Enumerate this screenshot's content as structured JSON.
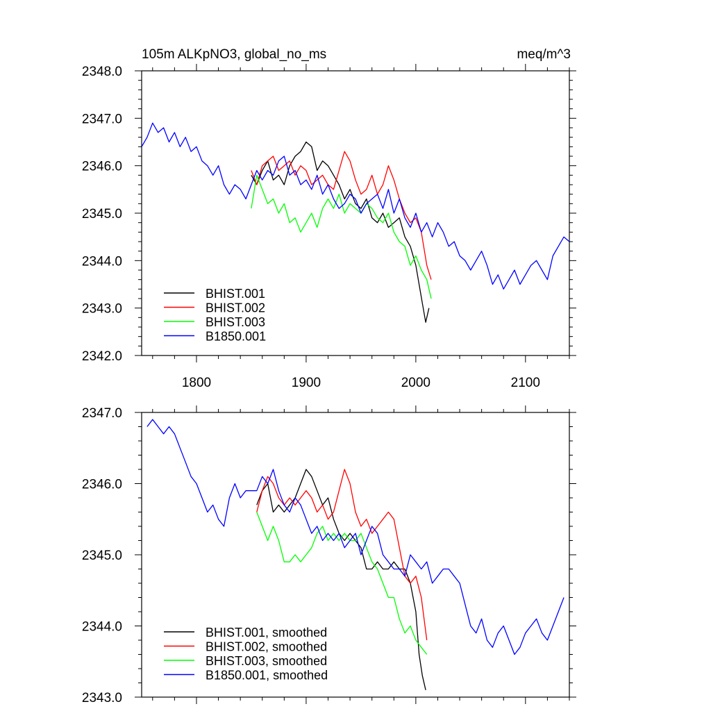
{
  "chart_data": [
    {
      "type": "line",
      "title": "105m ALKpNO3, global_no_ms",
      "units": "meq/m^3",
      "xlim": [
        1750,
        2140
      ],
      "ylim": [
        2342.0,
        2348.0
      ],
      "xticks": [
        1800,
        1900,
        2000,
        2100
      ],
      "xtick_labels": [
        "1800",
        "1900",
        "2000",
        "2100"
      ],
      "yticks": [
        2342.0,
        2343.0,
        2344.0,
        2345.0,
        2346.0,
        2347.0,
        2348.0
      ],
      "ytick_labels": [
        "2342.0",
        "2343.0",
        "2344.0",
        "2345.0",
        "2346.0",
        "2347.0",
        "2348.0"
      ],
      "legend_position": "bottom-left",
      "series": [
        {
          "name": "BHIST.001",
          "color": "#000000",
          "x": [
            1850,
            1855,
            1860,
            1865,
            1870,
            1875,
            1880,
            1885,
            1890,
            1895,
            1900,
            1905,
            1910,
            1915,
            1920,
            1925,
            1930,
            1935,
            1940,
            1945,
            1950,
            1955,
            1960,
            1965,
            1970,
            1975,
            1980,
            1985,
            1990,
            1995,
            2000,
            2003,
            2006,
            2009,
            2012
          ],
          "y": [
            2345.8,
            2345.6,
            2345.9,
            2346.1,
            2345.7,
            2345.8,
            2345.6,
            2346.0,
            2346.2,
            2346.3,
            2346.5,
            2346.4,
            2345.9,
            2346.1,
            2346.0,
            2345.8,
            2345.6,
            2345.3,
            2345.5,
            2345.2,
            2345.1,
            2345.3,
            2344.9,
            2344.8,
            2345.0,
            2344.7,
            2344.8,
            2344.9,
            2344.5,
            2344.3,
            2343.9,
            2343.5,
            2343.1,
            2342.7,
            2343.0
          ]
        },
        {
          "name": "BHIST.002",
          "color": "#ff0000",
          "x": [
            1850,
            1855,
            1860,
            1865,
            1870,
            1875,
            1880,
            1885,
            1890,
            1895,
            1900,
            1905,
            1910,
            1915,
            1920,
            1925,
            1930,
            1935,
            1940,
            1945,
            1950,
            1955,
            1960,
            1965,
            1970,
            1975,
            1980,
            1985,
            1990,
            1995,
            2000,
            2005,
            2010,
            2014
          ],
          "y": [
            2345.9,
            2345.6,
            2346.0,
            2346.1,
            2346.2,
            2345.9,
            2346.0,
            2346.1,
            2345.8,
            2346.0,
            2345.9,
            2345.6,
            2345.7,
            2345.8,
            2345.6,
            2345.5,
            2345.9,
            2346.3,
            2346.1,
            2345.7,
            2345.4,
            2345.5,
            2345.8,
            2345.4,
            2345.6,
            2346.0,
            2345.7,
            2345.3,
            2345.0,
            2344.8,
            2344.9,
            2344.6,
            2343.9,
            2343.6
          ]
        },
        {
          "name": "BHIST.003",
          "color": "#00ff00",
          "x": [
            1850,
            1855,
            1860,
            1865,
            1870,
            1875,
            1880,
            1885,
            1890,
            1895,
            1900,
            1905,
            1910,
            1915,
            1920,
            1925,
            1930,
            1935,
            1940,
            1945,
            1950,
            1955,
            1960,
            1965,
            1970,
            1975,
            1980,
            1985,
            1990,
            1995,
            2000,
            2005,
            2010,
            2014
          ],
          "y": [
            2345.1,
            2345.8,
            2345.5,
            2345.2,
            2345.3,
            2345.0,
            2345.2,
            2344.8,
            2344.9,
            2344.6,
            2344.8,
            2345.0,
            2344.7,
            2345.1,
            2345.3,
            2345.1,
            2345.4,
            2345.0,
            2345.2,
            2345.1,
            2345.0,
            2345.2,
            2345.1,
            2344.9,
            2344.8,
            2345.0,
            2344.6,
            2344.4,
            2344.3,
            2343.9,
            2344.1,
            2343.8,
            2343.6,
            2343.2
          ]
        },
        {
          "name": "B1850.001",
          "color": "#0000ff",
          "x": [
            1750,
            1755,
            1760,
            1765,
            1770,
            1775,
            1780,
            1785,
            1790,
            1795,
            1800,
            1805,
            1810,
            1815,
            1820,
            1825,
            1830,
            1835,
            1840,
            1845,
            1850,
            1855,
            1860,
            1865,
            1870,
            1875,
            1880,
            1885,
            1890,
            1895,
            1900,
            1905,
            1910,
            1915,
            1920,
            1925,
            1930,
            1935,
            1940,
            1945,
            1950,
            1955,
            1960,
            1965,
            1970,
            1975,
            1980,
            1985,
            1990,
            1995,
            2000,
            2005,
            2010,
            2015,
            2020,
            2025,
            2030,
            2035,
            2040,
            2045,
            2050,
            2055,
            2060,
            2065,
            2070,
            2075,
            2080,
            2085,
            2090,
            2095,
            2100,
            2105,
            2110,
            2115,
            2120,
            2125,
            2130,
            2135,
            2140
          ],
          "y": [
            2346.4,
            2346.6,
            2346.9,
            2346.7,
            2346.8,
            2346.5,
            2346.7,
            2346.4,
            2346.6,
            2346.3,
            2346.4,
            2346.1,
            2346.0,
            2345.8,
            2346.0,
            2345.6,
            2345.4,
            2345.6,
            2345.5,
            2345.3,
            2345.6,
            2345.9,
            2345.7,
            2345.9,
            2345.8,
            2346.1,
            2346.2,
            2345.8,
            2345.9,
            2345.6,
            2345.7,
            2345.5,
            2345.8,
            2345.4,
            2345.6,
            2345.3,
            2345.1,
            2345.2,
            2345.4,
            2345.3,
            2345.0,
            2345.2,
            2345.3,
            2345.4,
            2345.1,
            2345.5,
            2345.0,
            2345.3,
            2344.9,
            2344.7,
            2345.0,
            2344.6,
            2344.8,
            2344.5,
            2344.8,
            2344.6,
            2344.3,
            2344.4,
            2344.1,
            2344.0,
            2343.8,
            2344.0,
            2344.2,
            2343.9,
            2343.5,
            2343.7,
            2343.4,
            2343.6,
            2343.8,
            2343.5,
            2343.7,
            2343.9,
            2344.0,
            2343.8,
            2343.6,
            2344.1,
            2344.3,
            2344.5,
            2344.4
          ]
        }
      ]
    },
    {
      "type": "line",
      "title": "",
      "xlim": [
        1750,
        2140
      ],
      "ylim": [
        2343.0,
        2347.0
      ],
      "xticks": [
        1800,
        1900,
        2000,
        2100
      ],
      "yticks": [
        2343.0,
        2344.0,
        2345.0,
        2346.0,
        2347.0
      ],
      "ytick_labels": [
        "2343.0",
        "2344.0",
        "2345.0",
        "2346.0",
        "2347.0"
      ],
      "legend_position": "bottom-left",
      "series": [
        {
          "name": "BHIST.001, smoothed",
          "color": "#000000",
          "x": [
            1855,
            1860,
            1865,
            1870,
            1875,
            1880,
            1885,
            1890,
            1895,
            1900,
            1905,
            1910,
            1915,
            1920,
            1925,
            1930,
            1935,
            1940,
            1945,
            1950,
            1955,
            1960,
            1965,
            1970,
            1975,
            1980,
            1985,
            1990,
            1995,
            2000,
            2003,
            2006,
            2009
          ],
          "y": [
            2345.7,
            2345.9,
            2346.0,
            2345.6,
            2345.7,
            2345.6,
            2345.7,
            2345.8,
            2346.0,
            2346.2,
            2346.1,
            2345.9,
            2345.7,
            2345.8,
            2345.5,
            2345.3,
            2345.2,
            2345.3,
            2345.2,
            2345.1,
            2344.8,
            2344.8,
            2344.9,
            2344.8,
            2344.8,
            2344.9,
            2344.8,
            2344.8,
            2344.6,
            2344.2,
            2343.6,
            2343.3,
            2343.1
          ]
        },
        {
          "name": "BHIST.002, smoothed",
          "color": "#ff0000",
          "x": [
            1855,
            1860,
            1865,
            1870,
            1875,
            1880,
            1885,
            1890,
            1895,
            1900,
            1905,
            1910,
            1915,
            1920,
            1925,
            1930,
            1935,
            1940,
            1945,
            1950,
            1955,
            1960,
            1965,
            1970,
            1975,
            1980,
            1985,
            1990,
            1995,
            2000,
            2005,
            2010
          ],
          "y": [
            2345.6,
            2345.9,
            2346.1,
            2346.0,
            2345.8,
            2345.7,
            2345.8,
            2345.7,
            2345.8,
            2345.9,
            2345.8,
            2345.6,
            2345.7,
            2345.5,
            2345.6,
            2345.9,
            2346.2,
            2346.0,
            2345.6,
            2345.4,
            2345.5,
            2345.3,
            2345.4,
            2345.5,
            2345.6,
            2345.5,
            2345.1,
            2344.7,
            2344.6,
            2344.7,
            2344.4,
            2343.8
          ]
        },
        {
          "name": "BHIST.003, smoothed",
          "color": "#00ff00",
          "x": [
            1855,
            1860,
            1865,
            1870,
            1875,
            1880,
            1885,
            1890,
            1895,
            1900,
            1905,
            1910,
            1915,
            1920,
            1925,
            1930,
            1935,
            1940,
            1945,
            1950,
            1955,
            1960,
            1965,
            1970,
            1975,
            1980,
            1985,
            1990,
            1995,
            2000,
            2005,
            2010
          ],
          "y": [
            2345.6,
            2345.4,
            2345.2,
            2345.4,
            2345.2,
            2344.9,
            2344.9,
            2345.0,
            2344.9,
            2345.0,
            2345.1,
            2345.3,
            2345.4,
            2345.2,
            2345.3,
            2345.2,
            2345.3,
            2345.2,
            2345.2,
            2345.3,
            2345.1,
            2344.9,
            2344.8,
            2344.6,
            2344.4,
            2344.4,
            2344.1,
            2343.9,
            2344.0,
            2343.8,
            2343.7,
            2343.6
          ]
        },
        {
          "name": "B1850.001, smoothed",
          "color": "#0000ff",
          "x": [
            1755,
            1760,
            1765,
            1770,
            1775,
            1780,
            1785,
            1790,
            1795,
            1800,
            1805,
            1810,
            1815,
            1820,
            1825,
            1830,
            1835,
            1840,
            1845,
            1850,
            1855,
            1860,
            1865,
            1870,
            1875,
            1880,
            1885,
            1890,
            1895,
            1900,
            1905,
            1910,
            1915,
            1920,
            1925,
            1930,
            1935,
            1940,
            1945,
            1950,
            1955,
            1960,
            1965,
            1970,
            1975,
            1980,
            1985,
            1990,
            1995,
            2000,
            2005,
            2010,
            2015,
            2020,
            2025,
            2030,
            2035,
            2040,
            2045,
            2050,
            2055,
            2060,
            2065,
            2070,
            2075,
            2080,
            2085,
            2090,
            2095,
            2100,
            2105,
            2110,
            2115,
            2120,
            2125,
            2130,
            2135
          ],
          "y": [
            2346.8,
            2346.9,
            2346.8,
            2346.7,
            2346.8,
            2346.7,
            2346.5,
            2346.3,
            2346.1,
            2346.0,
            2345.8,
            2345.6,
            2345.7,
            2345.5,
            2345.4,
            2345.8,
            2346.0,
            2345.8,
            2345.9,
            2345.9,
            2345.9,
            2346.1,
            2346.0,
            2346.2,
            2345.9,
            2345.7,
            2345.6,
            2345.8,
            2345.7,
            2345.5,
            2345.3,
            2345.4,
            2345.2,
            2345.3,
            2345.2,
            2345.3,
            2345.1,
            2345.2,
            2345.3,
            2345.0,
            2345.2,
            2345.4,
            2345.3,
            2345.0,
            2344.9,
            2344.8,
            2344.8,
            2344.7,
            2345.0,
            2344.9,
            2344.8,
            2344.9,
            2344.6,
            2344.7,
            2344.8,
            2344.8,
            2344.7,
            2344.6,
            2344.3,
            2344.0,
            2343.9,
            2344.1,
            2343.8,
            2343.7,
            2343.9,
            2344.0,
            2343.8,
            2343.6,
            2343.7,
            2343.9,
            2344.0,
            2344.1,
            2343.9,
            2343.8,
            2344.0,
            2344.2,
            2344.4
          ]
        }
      ]
    }
  ]
}
